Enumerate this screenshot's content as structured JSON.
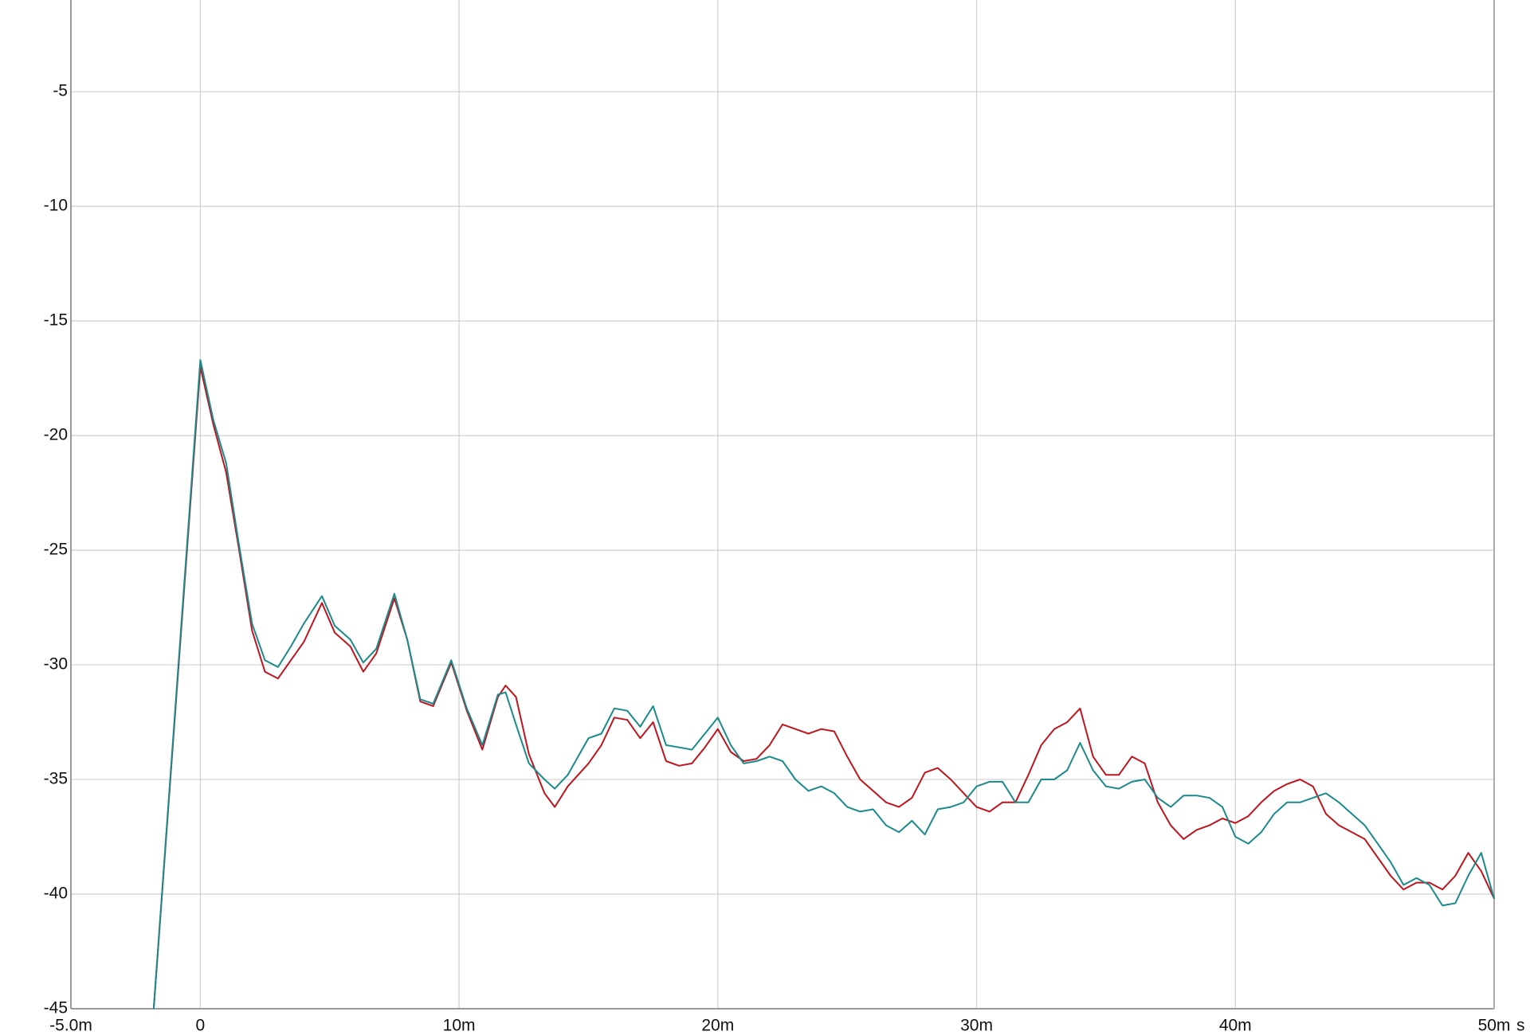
{
  "chart_data": {
    "type": "line",
    "x_label": "s",
    "x": [
      -0.0018,
      0,
      0.0005,
      0.001,
      0.0015,
      0.002,
      0.0025,
      0.003,
      0.0035,
      0.004,
      0.0047,
      0.0052,
      0.0058,
      0.0063,
      0.0068,
      0.0075,
      0.008,
      0.0085,
      0.009,
      0.0097,
      0.0103,
      0.0109,
      0.0115,
      0.0118,
      0.0122,
      0.0127,
      0.0133,
      0.0137,
      0.0142,
      0.015,
      0.0155,
      0.016,
      0.0165,
      0.017,
      0.0175,
      0.018,
      0.0185,
      0.019,
      0.0195,
      0.02,
      0.0205,
      0.021,
      0.0215,
      0.022,
      0.0225,
      0.023,
      0.0235,
      0.024,
      0.0245,
      0.025,
      0.0255,
      0.026,
      0.0265,
      0.027,
      0.0275,
      0.028,
      0.0285,
      0.029,
      0.0295,
      0.03,
      0.0305,
      0.031,
      0.0315,
      0.032,
      0.0325,
      0.033,
      0.0335,
      0.034,
      0.0345,
      0.035,
      0.0355,
      0.036,
      0.0365,
      0.037,
      0.0375,
      0.038,
      0.0385,
      0.039,
      0.0395,
      0.04,
      0.0405,
      0.041,
      0.0415,
      0.042,
      0.0425,
      0.043,
      0.0435,
      0.044,
      0.045,
      0.046,
      0.0465,
      0.047,
      0.0475,
      0.048,
      0.0485,
      0.049,
      0.0495,
      0.05
    ],
    "series": [
      {
        "color": "#c0141e",
        "values": [
          -45,
          -17.0,
          -19.5,
          -21.6,
          -25.0,
          -28.5,
          -30.3,
          -30.6,
          -29.8,
          -29.0,
          -27.3,
          -28.6,
          -29.2,
          -30.3,
          -29.5,
          -27.1,
          -28.9,
          -31.6,
          -31.8,
          -29.9,
          -32.0,
          -33.7,
          -31.4,
          -30.9,
          -31.4,
          -33.9,
          -35.6,
          -36.2,
          -35.3,
          -34.3,
          -33.5,
          -32.3,
          -32.4,
          -33.2,
          -32.5,
          -34.2,
          -34.4,
          -34.3,
          -33.6,
          -32.8,
          -33.8,
          -34.2,
          -34.1,
          -33.5,
          -32.6,
          -32.8,
          -33.0,
          -32.8,
          -32.9,
          -34.0,
          -35.0,
          -35.5,
          -36.0,
          -36.2,
          -35.8,
          -34.7,
          -34.5,
          -35.0,
          -35.6,
          -36.2,
          -36.4,
          -36.0,
          -36.0,
          -34.8,
          -33.5,
          -32.8,
          -32.5,
          -31.9,
          -34.0,
          -34.8,
          -34.8,
          -34.0,
          -34.3,
          -36.0,
          -37.0,
          -37.6,
          -37.2,
          -37.0,
          -36.7,
          -36.9,
          -36.6,
          -36.0,
          -35.5,
          -35.2,
          -35.0,
          -35.3,
          -36.5,
          -37.0,
          -37.6,
          -39.2,
          -39.8,
          -39.5,
          -39.5,
          -39.8,
          -39.2,
          -38.2,
          -39.0,
          -40.2
        ]
      },
      {
        "color": "#1a8a8a",
        "values": [
          -45,
          -16.7,
          -19.3,
          -21.2,
          -24.8,
          -28.2,
          -29.8,
          -30.1,
          -29.2,
          -28.2,
          -27.0,
          -28.3,
          -28.9,
          -29.9,
          -29.3,
          -26.9,
          -28.9,
          -31.5,
          -31.7,
          -29.8,
          -31.9,
          -33.5,
          -31.3,
          -31.2,
          -32.6,
          -34.3,
          -35.0,
          -35.4,
          -34.8,
          -33.2,
          -33.0,
          -31.9,
          -32.0,
          -32.7,
          -31.8,
          -33.5,
          -33.6,
          -33.7,
          -33.0,
          -32.3,
          -33.5,
          -34.3,
          -34.2,
          -34.0,
          -34.2,
          -35.0,
          -35.5,
          -35.3,
          -35.6,
          -36.2,
          -36.4,
          -36.3,
          -37.0,
          -37.3,
          -36.8,
          -37.4,
          -36.3,
          -36.2,
          -36.0,
          -35.3,
          -35.1,
          -35.1,
          -36.0,
          -36.0,
          -35.0,
          -35.0,
          -34.6,
          -33.4,
          -34.6,
          -35.3,
          -35.4,
          -35.1,
          -35.0,
          -35.8,
          -36.2,
          -35.7,
          -35.7,
          -35.8,
          -36.2,
          -37.5,
          -37.8,
          -37.3,
          -36.5,
          -36.0,
          -36.0,
          -35.8,
          -35.6,
          -36.0,
          -37.0,
          -38.6,
          -39.6,
          -39.3,
          -39.6,
          -40.5,
          -40.4,
          -39.2,
          -38.2,
          -40.2
        ]
      }
    ],
    "xlim": [
      -0.005,
      0.05
    ],
    "ylim": [
      -45,
      -1
    ],
    "xticks": [
      {
        "value": -0.005,
        "label": "-5.0m"
      },
      0,
      {
        "value": 0.01,
        "label": "10m"
      },
      {
        "value": 0.02,
        "label": "20m"
      },
      {
        "value": 0.03,
        "label": "30m"
      },
      {
        "value": 0.04,
        "label": "40m"
      },
      {
        "value": 0.05,
        "label": "50m"
      }
    ],
    "yticks": [
      -5,
      -10,
      -15,
      -20,
      -25,
      -30,
      -35,
      -40,
      -45
    ],
    "grid": true
  }
}
